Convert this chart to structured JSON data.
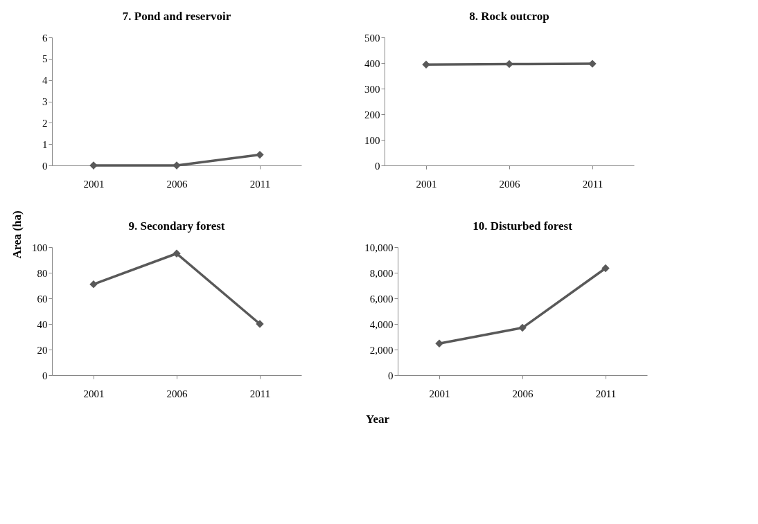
{
  "chart_data": [
    {
      "type": "line",
      "title": "7.  Pond and reservoir",
      "ylabel": "Area (ha)",
      "categories": [
        "2001",
        "2006",
        "2011"
      ],
      "marker": "diamond",
      "grid": false,
      "series": [
        {
          "color": "#595959",
          "values": [
            0,
            0,
            0.5
          ]
        }
      ],
      "ylim": [
        0,
        6
      ],
      "yticks": [
        0,
        1,
        2,
        3,
        4,
        5,
        6
      ]
    },
    {
      "type": "line",
      "title": "8.  Rock outcrop",
      "categories": [
        "2001",
        "2006",
        "2011"
      ],
      "marker": "diamond",
      "grid": false,
      "series": [
        {
          "color": "#595959",
          "values": [
            394,
            396,
            397
          ]
        }
      ],
      "ylim": [
        0,
        500
      ],
      "yticks": [
        0,
        100,
        200,
        300,
        400,
        500
      ]
    },
    {
      "type": "line",
      "title": "9.  Secondary forest",
      "categories": [
        "2001",
        "2006",
        "2011"
      ],
      "marker": "diamond",
      "grid": false,
      "series": [
        {
          "color": "#595959",
          "values": [
            71,
            95,
            40
          ]
        }
      ],
      "ylim": [
        0,
        100
      ],
      "yticks": [
        0,
        20,
        40,
        60,
        80,
        100
      ]
    },
    {
      "type": "line",
      "title": "10.  Disturbed forest",
      "xlabel": "Year",
      "categories": [
        "2001",
        "2006",
        "2011"
      ],
      "marker": "diamond",
      "grid": false,
      "series": [
        {
          "color": "#595959",
          "values": [
            2470,
            3700,
            8350
          ]
        }
      ],
      "ylim": [
        0,
        10000
      ],
      "yticks": [
        0,
        {
          "value": 2000,
          "label": "2,000"
        },
        {
          "value": 4000,
          "label": "4,000"
        },
        {
          "value": 6000,
          "label": "6,000"
        },
        {
          "value": 8000,
          "label": "8,000"
        },
        {
          "value": 10000,
          "label": "10,000"
        }
      ]
    }
  ]
}
